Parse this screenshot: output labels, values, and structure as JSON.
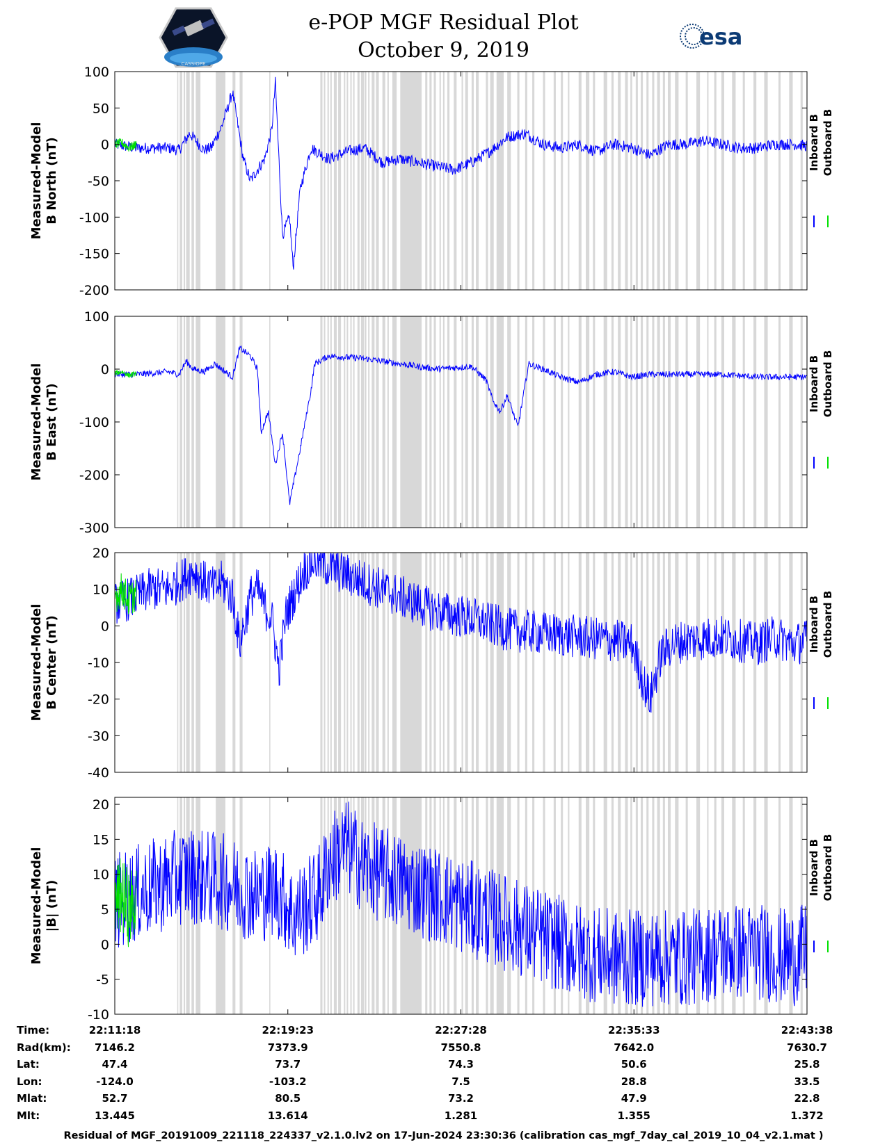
{
  "header": {
    "title_line1": "e-POP MGF Residual Plot",
    "title_line2": "October 9, 2019",
    "logo_left_text": "CASSIOPE",
    "logo_right_text": "esa"
  },
  "colors": {
    "inboard": "#0000ff",
    "outboard": "#00e000",
    "gap_shading": "#d8d8d8"
  },
  "chart_data": [
    {
      "type": "line",
      "ylabel": [
        "Measured-Model",
        "B North (nT)"
      ],
      "ylim": [
        -200,
        100
      ],
      "yticks": [
        -200,
        -150,
        -100,
        -50,
        0,
        50,
        100
      ],
      "x_range_seconds": [
        0,
        1940
      ],
      "series": [
        {
          "name": "Inboard B",
          "x": [
            0,
            60,
            100,
            150,
            180,
            210,
            250,
            270,
            300,
            330,
            360,
            380,
            400,
            420,
            440,
            450,
            470,
            490,
            500,
            520,
            550,
            600,
            650,
            700,
            750,
            800,
            850,
            900,
            950,
            1000,
            1050,
            1100,
            1150,
            1200,
            1250,
            1300,
            1350,
            1400,
            1450,
            1500,
            1550,
            1600,
            1650,
            1700,
            1750,
            1800,
            1850,
            1900,
            1940
          ],
          "values": [
            0,
            -5,
            -5,
            -5,
            -8,
            15,
            -8,
            -5,
            25,
            72,
            -20,
            -50,
            -35,
            -20,
            20,
            85,
            -125,
            -100,
            -170,
            -60,
            -5,
            -20,
            -10,
            -5,
            -25,
            -20,
            -25,
            -30,
            -35,
            -25,
            -10,
            10,
            15,
            0,
            -5,
            0,
            -10,
            0,
            -5,
            -15,
            0,
            0,
            5,
            0,
            -5,
            -5,
            0,
            0,
            -2
          ]
        },
        {
          "name": "Outboard B",
          "x": [
            0,
            20,
            40,
            60
          ],
          "values": [
            0,
            2,
            -5,
            0
          ]
        }
      ]
    },
    {
      "type": "line",
      "ylabel": [
        "Measured-Model",
        "B East (nT)"
      ],
      "ylim": [
        -300,
        100
      ],
      "yticks": [
        -300,
        -200,
        -100,
        0,
        100
      ],
      "x_range_seconds": [
        0,
        1940
      ],
      "series": [
        {
          "name": "Inboard B",
          "x": [
            0,
            60,
            100,
            150,
            180,
            200,
            220,
            250,
            280,
            300,
            330,
            350,
            380,
            400,
            410,
            430,
            450,
            470,
            490,
            520,
            550,
            560,
            600,
            700,
            800,
            900,
            1000,
            1040,
            1060,
            1080,
            1100,
            1130,
            1160,
            1200,
            1250,
            1300,
            1350,
            1400,
            1450,
            1500,
            1550,
            1600,
            1700,
            1800,
            1940
          ],
          "values": [
            -10,
            -10,
            -8,
            -5,
            -10,
            15,
            0,
            -5,
            10,
            0,
            -15,
            40,
            25,
            0,
            -120,
            -80,
            -180,
            -120,
            -255,
            -150,
            -40,
            10,
            25,
            20,
            10,
            0,
            5,
            -20,
            -60,
            -80,
            -50,
            -110,
            10,
            0,
            -15,
            -25,
            -10,
            -5,
            -15,
            -10,
            -10,
            -10,
            -10,
            -15,
            -15
          ]
        },
        {
          "name": "Outboard B",
          "x": [
            0,
            20,
            40,
            60
          ],
          "values": [
            -8,
            -5,
            -12,
            -8
          ]
        }
      ]
    },
    {
      "type": "line",
      "ylabel": [
        "Measured-Model",
        "B Center (nT)"
      ],
      "ylim": [
        -40,
        20
      ],
      "yticks": [
        -40,
        -30,
        -20,
        -10,
        0,
        10,
        20
      ],
      "x_range_seconds": [
        0,
        1940
      ],
      "series": [
        {
          "name": "Inboard B",
          "x": [
            0,
            60,
            100,
            150,
            180,
            220,
            250,
            280,
            300,
            330,
            350,
            380,
            400,
            420,
            440,
            460,
            480,
            500,
            530,
            560,
            600,
            700,
            800,
            900,
            1000,
            1100,
            1200,
            1300,
            1400,
            1450,
            1480,
            1500,
            1530,
            1560,
            1600,
            1700,
            1800,
            1850,
            1900,
            1940
          ],
          "values": [
            6,
            8,
            10,
            10,
            12,
            15,
            12,
            10,
            12,
            8,
            -5,
            8,
            10,
            5,
            2,
            -12,
            3,
            8,
            15,
            18,
            16,
            12,
            8,
            4,
            2,
            -1,
            -2,
            -3,
            -4,
            -5,
            -15,
            -20,
            -8,
            -5,
            -4,
            -3,
            -5,
            -3,
            -5,
            -4
          ]
        },
        {
          "name": "Outboard B",
          "x": [
            0,
            20,
            40,
            60
          ],
          "values": [
            8,
            10,
            7,
            9
          ]
        }
      ]
    },
    {
      "type": "line",
      "ylabel": [
        "Measured-Model",
        "|B| (nT)"
      ],
      "ylim": [
        -10,
        21
      ],
      "yticks": [
        -10,
        -5,
        0,
        5,
        10,
        15,
        20
      ],
      "x_range_seconds": [
        0,
        1940
      ],
      "series": [
        {
          "name": "Inboard B",
          "x": [
            0,
            100,
            200,
            300,
            350,
            400,
            450,
            480,
            500,
            550,
            580,
            600,
            650,
            700,
            800,
            900,
            1000,
            1100,
            1200,
            1300,
            1400,
            1500,
            1600,
            1700,
            1800,
            1900,
            1940
          ],
          "values": [
            6,
            8,
            10,
            9,
            8,
            7,
            8,
            6,
            4,
            6,
            8,
            12,
            14,
            11,
            9,
            7,
            5,
            3,
            1,
            -1,
            -2,
            -2,
            -2,
            -1,
            -1,
            -2,
            -1
          ]
        },
        {
          "name": "Outboard B",
          "x": [
            0,
            20,
            40,
            60
          ],
          "values": [
            6,
            7,
            5,
            6
          ]
        }
      ]
    }
  ],
  "x_axis": {
    "tick_seconds": [
      0,
      485,
      970,
      1455,
      1940
    ],
    "tick_times": [
      "22:11:18",
      "22:19:23",
      "22:27:28",
      "22:35:33",
      "22:43:38"
    ]
  },
  "legend": {
    "inboard": "Inboard B",
    "outboard": "Outboard B"
  },
  "gap_bands_seconds": [
    [
      175,
      178
    ],
    [
      182,
      189
    ],
    [
      193,
      197
    ],
    [
      200,
      210
    ],
    [
      215,
      222
    ],
    [
      227,
      240
    ],
    [
      283,
      310
    ],
    [
      330,
      338
    ],
    [
      350,
      358
    ],
    [
      433,
      436
    ],
    [
      576,
      582
    ],
    [
      586,
      590
    ],
    [
      596,
      600
    ],
    [
      604,
      608
    ],
    [
      614,
      622
    ],
    [
      626,
      634
    ],
    [
      642,
      646
    ],
    [
      650,
      654
    ],
    [
      660,
      664
    ],
    [
      668,
      672
    ],
    [
      680,
      686
    ],
    [
      690,
      698
    ],
    [
      700,
      705
    ],
    [
      710,
      714
    ],
    [
      720,
      728
    ],
    [
      732,
      740
    ],
    [
      750,
      758
    ],
    [
      764,
      768
    ],
    [
      778,
      790
    ],
    [
      800,
      860
    ],
    [
      870,
      876
    ],
    [
      882,
      888
    ],
    [
      894,
      900
    ],
    [
      910,
      914
    ],
    [
      920,
      924
    ],
    [
      932,
      938
    ],
    [
      950,
      958
    ],
    [
      972,
      976
    ],
    [
      982,
      990
    ],
    [
      1000,
      1006
    ],
    [
      1012,
      1020
    ],
    [
      1040,
      1046
    ],
    [
      1052,
      1062
    ],
    [
      1070,
      1090
    ],
    [
      1100,
      1110
    ],
    [
      1128,
      1134
    ],
    [
      1150,
      1156
    ],
    [
      1170,
      1176
    ],
    [
      1200,
      1206
    ],
    [
      1230,
      1236
    ],
    [
      1250,
      1256
    ],
    [
      1270,
      1274
    ],
    [
      1300,
      1308
    ],
    [
      1320,
      1330
    ],
    [
      1340,
      1346
    ],
    [
      1370,
      1380
    ],
    [
      1392,
      1398
    ],
    [
      1410,
      1418
    ],
    [
      1430,
      1438
    ],
    [
      1445,
      1450
    ],
    [
      1460,
      1466
    ],
    [
      1474,
      1480
    ],
    [
      1490,
      1496
    ],
    [
      1506,
      1512
    ],
    [
      1520,
      1528
    ],
    [
      1536,
      1542
    ],
    [
      1550,
      1558
    ],
    [
      1570,
      1580
    ],
    [
      1600,
      1606
    ],
    [
      1630,
      1640
    ],
    [
      1660,
      1664
    ],
    [
      1680,
      1686
    ],
    [
      1700,
      1708
    ],
    [
      1730,
      1740
    ],
    [
      1760,
      1766
    ],
    [
      1790,
      1798
    ],
    [
      1820,
      1830
    ],
    [
      1860,
      1866
    ],
    [
      1890,
      1900
    ],
    [
      1922,
      1928
    ]
  ],
  "orbit_table": {
    "labels": [
      "Time:",
      "Rad(km):",
      "Lat:",
      "Lon:",
      "Mlat:",
      "Mlt:"
    ],
    "columns": [
      [
        "22:11:18",
        "7146.2",
        "47.4",
        "-124.0",
        "52.7",
        "13.445"
      ],
      [
        "22:19:23",
        "7373.9",
        "73.7",
        "-103.2",
        "80.5",
        "13.614"
      ],
      [
        "22:27:28",
        "7550.8",
        "74.3",
        "7.5",
        "73.2",
        "1.281"
      ],
      [
        "22:35:33",
        "7642.0",
        "50.6",
        "28.8",
        "47.9",
        "1.355"
      ],
      [
        "22:43:38",
        "7630.7",
        "25.8",
        "33.5",
        "22.8",
        "1.372"
      ]
    ]
  },
  "footer": "Residual of MGF_20191009_221118_224337_v2.1.0.lv2 on 17-Jun-2024 23:30:36 (calibration cas_mgf_7day_cal_2019_10_04_v2.1.mat )"
}
